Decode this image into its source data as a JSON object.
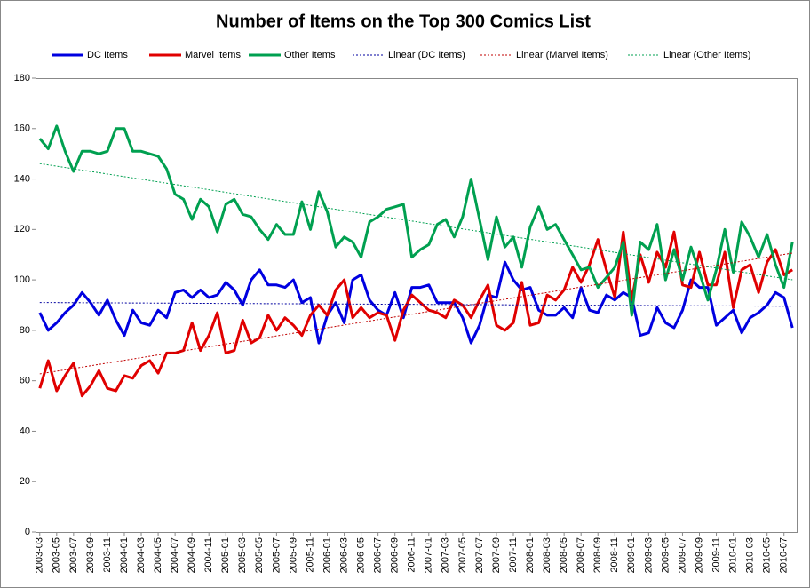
{
  "chart_data": {
    "type": "line",
    "title": "Number of Items on the Top 300 Comics List",
    "categories": [
      "2003-03",
      null,
      "2003-05",
      null,
      "2003-07",
      null,
      "2003-09",
      null,
      "2003-11",
      null,
      "2004-01",
      null,
      "2004-03",
      null,
      "2004-05",
      null,
      "2004-07",
      null,
      "2004-09",
      null,
      "2004-11",
      null,
      "2005-01",
      null,
      "2005-03",
      null,
      "2005-05",
      null,
      "2005-07",
      null,
      "2005-09",
      null,
      "2005-11",
      null,
      "2006-01",
      null,
      "2006-03",
      null,
      "2006-05",
      null,
      "2006-07",
      null,
      "2006-09",
      null,
      "2006-11",
      null,
      "2007-01",
      null,
      "2007-03",
      null,
      "2007-05",
      null,
      "2007-07",
      null,
      "2007-09",
      null,
      "2007-11",
      null,
      "2008-01",
      null,
      "2008-03",
      null,
      "2008-05",
      null,
      "2008-07",
      null,
      "2008-09",
      null,
      "2008-11",
      null,
      "2009-01",
      null,
      "2009-03",
      null,
      "2009-05",
      null,
      "2009-07",
      null,
      "2009-09",
      null,
      "2009-11",
      null,
      "2010-01",
      null,
      "2010-03",
      null,
      "2010-05",
      null,
      "2010-07",
      null
    ],
    "series": [
      {
        "name": "DC Items",
        "color": "#0000e0",
        "values": [
          87,
          80,
          83,
          87,
          90,
          95,
          91,
          86,
          92,
          84,
          78,
          88,
          83,
          82,
          88,
          85,
          95,
          96,
          93,
          96,
          93,
          94,
          99,
          96,
          90,
          100,
          104,
          98,
          98,
          97,
          100,
          91,
          93,
          75,
          86,
          91,
          83,
          100,
          102,
          92,
          88,
          86,
          95,
          85,
          97,
          97,
          98,
          91,
          91,
          91,
          85,
          75,
          82,
          94,
          93,
          107,
          100,
          96,
          97,
          88,
          86,
          86,
          89,
          85,
          97,
          88,
          87,
          94,
          92,
          95,
          93,
          78,
          79,
          89,
          83,
          81,
          88,
          100,
          97,
          97,
          82,
          85,
          88,
          79,
          85,
          87,
          90,
          95,
          93,
          81
        ]
      },
      {
        "name": "Marvel Items",
        "color": "#e00000",
        "values": [
          57,
          68,
          56,
          62,
          67,
          54,
          58,
          64,
          57,
          56,
          62,
          61,
          66,
          68,
          63,
          71,
          71,
          72,
          83,
          72,
          78,
          87,
          71,
          72,
          84,
          75,
          77,
          86,
          80,
          85,
          82,
          78,
          86,
          90,
          86,
          96,
          100,
          85,
          89,
          85,
          87,
          86,
          76,
          88,
          94,
          91,
          88,
          87,
          85,
          92,
          90,
          85,
          92,
          98,
          82,
          80,
          83,
          99,
          82,
          83,
          94,
          92,
          96,
          105,
          99,
          106,
          116,
          104,
          93,
          119,
          92,
          110,
          99,
          111,
          105,
          119,
          98,
          97,
          111,
          98,
          98,
          111,
          89,
          104,
          106,
          95,
          107,
          112,
          102,
          104
        ]
      },
      {
        "name": "Other Items",
        "color": "#00a050",
        "values": [
          156,
          152,
          161,
          151,
          143,
          151,
          151,
          150,
          151,
          160,
          160,
          151,
          151,
          150,
          149,
          144,
          134,
          132,
          124,
          132,
          129,
          119,
          130,
          132,
          126,
          125,
          120,
          116,
          122,
          118,
          118,
          131,
          120,
          135,
          127,
          113,
          117,
          115,
          109,
          123,
          125,
          128,
          129,
          130,
          109,
          112,
          114,
          122,
          124,
          117,
          125,
          140,
          124,
          108,
          125,
          113,
          117,
          105,
          121,
          129,
          120,
          122,
          116,
          110,
          104,
          105,
          97,
          101,
          105,
          115,
          86,
          115,
          112,
          122,
          100,
          112,
          100,
          113,
          103,
          92,
          104,
          120,
          103,
          123,
          117,
          109,
          118,
          106,
          97,
          115
        ]
      },
      {
        "name": "Linear (DC Items)",
        "color": "#0000a0",
        "trendline_of": 0
      },
      {
        "name": "Linear (Marvel Items)",
        "color": "#c00000",
        "trendline_of": 1
      },
      {
        "name": "Linear (Other Items)",
        "color": "#00a050",
        "trendline_of": 2
      }
    ],
    "ylim": [
      0,
      180
    ],
    "yticks": [
      0,
      20,
      40,
      60,
      80,
      100,
      120,
      140,
      160,
      180
    ],
    "grid": false
  }
}
